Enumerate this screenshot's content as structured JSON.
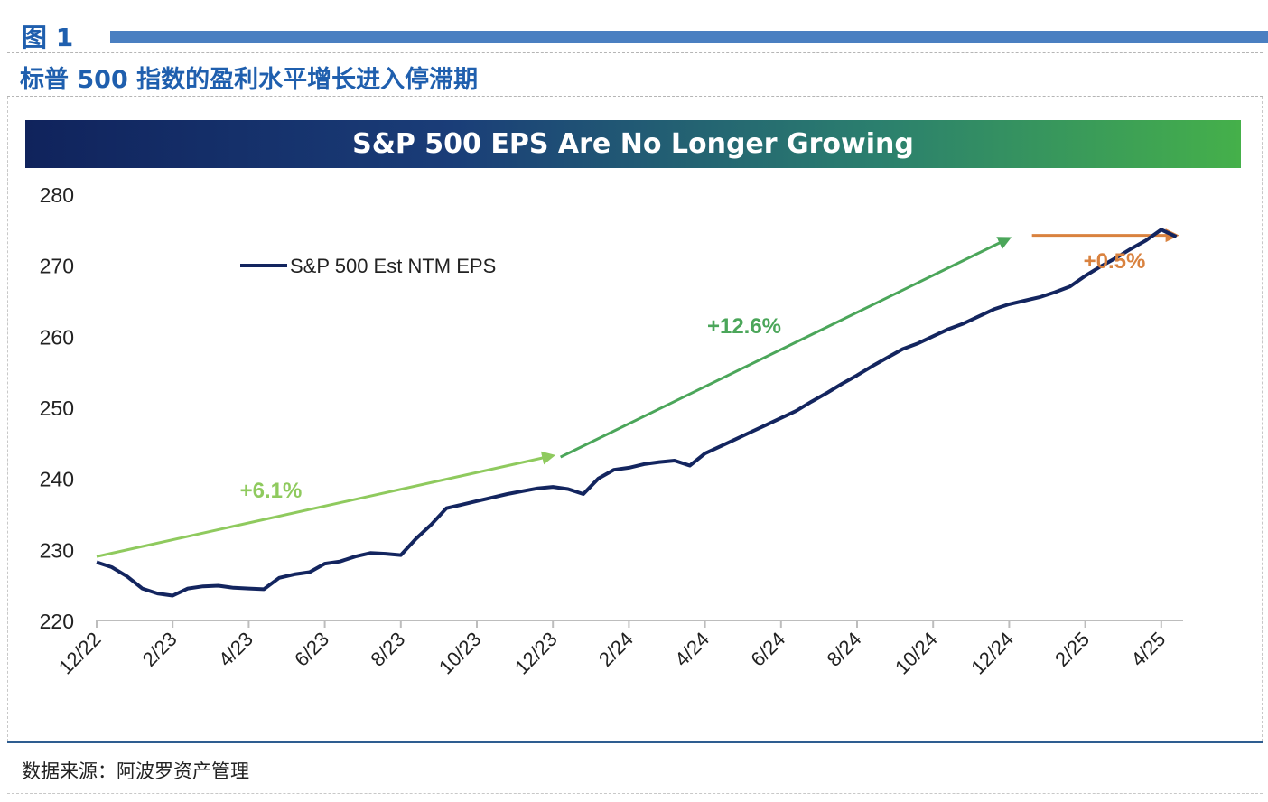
{
  "figure": {
    "label": "图 1",
    "subtitle": "标普 500 指数的盈利水平增长进入停滞期",
    "source": "数据来源：阿波罗资产管理"
  },
  "colors": {
    "accent_blue": "#1f5fae",
    "series_navy": "#13255f",
    "arrow_green_light": "#8fca5e",
    "arrow_green_dark": "#4ba65a",
    "arrow_orange": "#d9823f"
  },
  "chart_data": {
    "type": "line",
    "title": "S&P 500 EPS Are No Longer Growing",
    "xlabel": "",
    "ylabel": "",
    "ylim": [
      220,
      280
    ],
    "yticks": [
      220,
      230,
      240,
      250,
      260,
      270,
      280
    ],
    "xticks": [
      "12/22",
      "2/23",
      "4/23",
      "6/23",
      "8/23",
      "10/23",
      "12/23",
      "2/24",
      "4/24",
      "6/24",
      "8/24",
      "10/24",
      "12/24",
      "2/25",
      "4/25"
    ],
    "grid": false,
    "legend_position": "top-left",
    "series": [
      {
        "name": "S&P 500 Est NTM EPS",
        "x": [
          0,
          0.2,
          0.4,
          0.6,
          0.8,
          1.0,
          1.2,
          1.4,
          1.6,
          1.8,
          2.0,
          2.2,
          2.4,
          2.6,
          2.8,
          3.0,
          3.2,
          3.4,
          3.6,
          3.8,
          4.0,
          4.2,
          4.4,
          4.6,
          4.8,
          5.0,
          5.2,
          5.4,
          5.6,
          5.8,
          6.0,
          6.2,
          6.4,
          6.6,
          6.8,
          7.0,
          7.2,
          7.4,
          7.6,
          7.8,
          8.0,
          8.2,
          8.4,
          8.6,
          8.8,
          9.0,
          9.2,
          9.4,
          9.6,
          9.8,
          10.0,
          10.2,
          10.4,
          10.6,
          10.8,
          11.0,
          11.2,
          11.4,
          11.6,
          11.8,
          12.0,
          12.2,
          12.4,
          12.6,
          12.8,
          13.0,
          13.2,
          13.4,
          13.6,
          13.8,
          14.0,
          14.2
        ],
        "values": [
          228.2,
          227.5,
          226.2,
          224.5,
          223.8,
          223.5,
          224.5,
          224.8,
          224.9,
          224.6,
          224.5,
          224.4,
          226.0,
          226.5,
          226.8,
          228.0,
          228.3,
          229.0,
          229.5,
          229.4,
          229.2,
          231.5,
          233.5,
          235.8,
          236.3,
          236.8,
          237.3,
          237.8,
          238.2,
          238.6,
          238.8,
          238.5,
          237.8,
          240.0,
          241.2,
          241.5,
          242.0,
          242.3,
          242.5,
          241.8,
          243.5,
          244.5,
          245.5,
          246.5,
          247.5,
          248.5,
          249.5,
          250.8,
          252.0,
          253.3,
          254.5,
          255.8,
          257.0,
          258.2,
          259.0,
          260.0,
          261.0,
          261.8,
          262.8,
          263.8,
          264.5,
          265.0,
          265.5,
          266.2,
          267.0,
          268.5,
          269.8,
          271.0,
          272.3,
          273.5,
          275.0,
          274.0
        ]
      }
    ],
    "annotations": [
      {
        "text": "+6.1%",
        "from": [
          0,
          229
        ],
        "to": [
          6.0,
          243.2
        ],
        "color": "#8fca5e"
      },
      {
        "text": "+12.6%",
        "from": [
          6.1,
          243.0
        ],
        "to": [
          12.0,
          273.8
        ],
        "color": "#4ba65a"
      },
      {
        "text": "+0.5%",
        "from": [
          12.3,
          274.2
        ],
        "to": [
          14.2,
          274.2
        ],
        "color": "#d9823f"
      }
    ]
  }
}
